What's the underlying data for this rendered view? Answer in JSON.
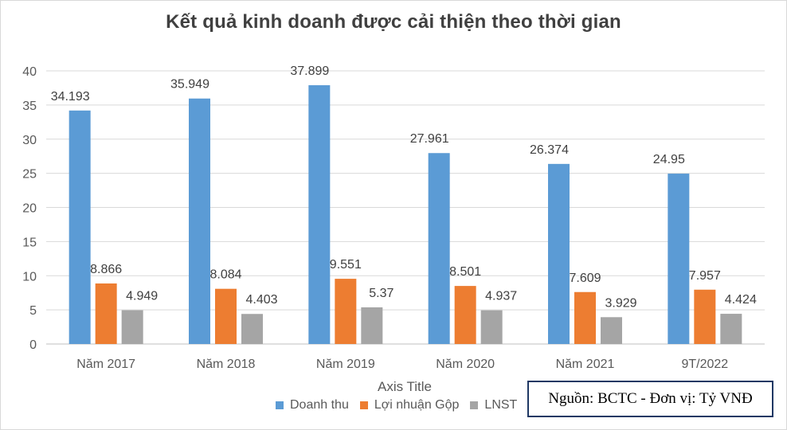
{
  "chart_data": {
    "type": "bar",
    "title": "Kết quả kinh doanh được cải thiện theo thời gian",
    "xlabel": "Axis Title",
    "ylabel": "",
    "categories": [
      "Năm 2017",
      "Năm 2018",
      "Năm 2019",
      "Năm 2020",
      "Năm 2021",
      "9T/2022"
    ],
    "series": [
      {
        "name": "Doanh thu",
        "color": "#5b9bd5",
        "values": [
          34.193,
          35.949,
          37.899,
          27.961,
          26.374,
          24.95
        ],
        "labels": [
          "34.193",
          "35.949",
          "37.899",
          "27.961",
          "26.374",
          "24.95"
        ]
      },
      {
        "name": "Lợi nhuận Gộp",
        "color": "#ed7d31",
        "values": [
          8.866,
          8.084,
          9.551,
          8.501,
          7.609,
          7.957
        ],
        "labels": [
          "8.866",
          "8.084",
          "9.551",
          "8.501",
          "7.609",
          "7.957"
        ]
      },
      {
        "name": "LNST",
        "color": "#a5a5a5",
        "values": [
          4.949,
          4.403,
          5.37,
          4.937,
          3.929,
          4.424
        ],
        "labels": [
          "4.949",
          "4.403",
          "5.37",
          "4.937",
          "3.929",
          "4.424"
        ]
      }
    ],
    "ylim": [
      0,
      40
    ],
    "yticks": [
      0,
      5,
      10,
      15,
      20,
      25,
      30,
      35,
      40
    ],
    "grid": true,
    "legend": "bottom"
  },
  "source_note": "Nguồn: BCTC - Đơn vị: Tỷ VNĐ"
}
